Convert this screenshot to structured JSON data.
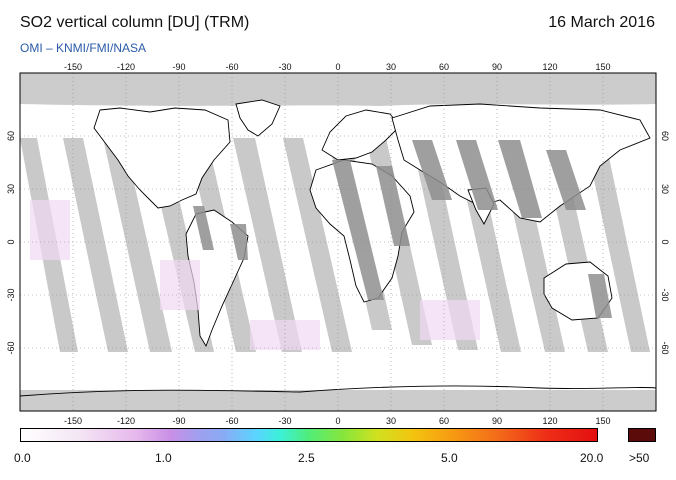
{
  "header": {
    "title": "SO2 vertical column [DU] (TRM)",
    "date": "16 March 2016",
    "credit": "OMI  –  KNMI/FMI/NASA"
  },
  "map": {
    "lon_ticks": [
      "-150",
      "-120",
      "-90",
      "-60",
      "-30",
      "0",
      "30",
      "60",
      "90",
      "120",
      "150"
    ],
    "lat_ticks": [
      "60",
      "30",
      "0",
      "-30",
      "-60"
    ],
    "colors": {
      "no_data": "#cccccc",
      "swath_gap": "#c9c9c9",
      "coast": "#000000",
      "grid": "#888888"
    }
  },
  "colorbar": {
    "labels": [
      "0.0",
      "1.0",
      "2.5",
      "5.0",
      "20.0"
    ],
    "over_label": ">50",
    "over_color": "#5b0b09"
  }
}
